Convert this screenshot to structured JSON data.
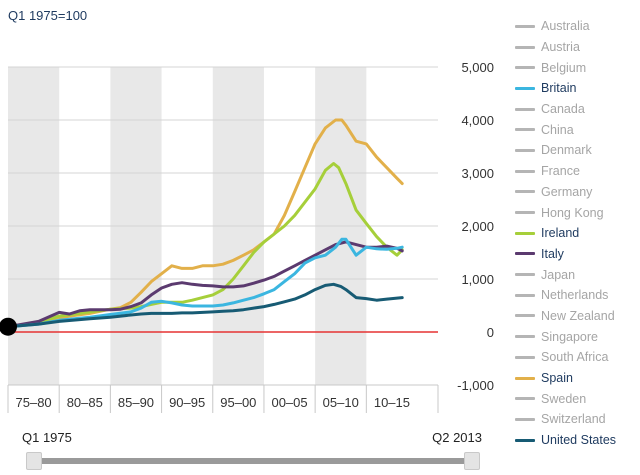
{
  "header": {
    "ylabel": "Q1 1975=100"
  },
  "legend": {
    "items": [
      {
        "name": "Australia",
        "color": "#b5b5b5",
        "active": false
      },
      {
        "name": "Austria",
        "color": "#b5b5b5",
        "active": false
      },
      {
        "name": "Belgium",
        "color": "#b5b5b5",
        "active": false
      },
      {
        "name": "Britain",
        "color": "#3bb6e0",
        "active": true
      },
      {
        "name": "Canada",
        "color": "#b5b5b5",
        "active": false
      },
      {
        "name": "China",
        "color": "#b5b5b5",
        "active": false
      },
      {
        "name": "Denmark",
        "color": "#b5b5b5",
        "active": false
      },
      {
        "name": "France",
        "color": "#b5b5b5",
        "active": false
      },
      {
        "name": "Germany",
        "color": "#b5b5b5",
        "active": false
      },
      {
        "name": "Hong Kong",
        "color": "#b5b5b5",
        "active": false
      },
      {
        "name": "Ireland",
        "color": "#a6cf3a",
        "active": true
      },
      {
        "name": "Italy",
        "color": "#5b3a6f",
        "active": true
      },
      {
        "name": "Japan",
        "color": "#b5b5b5",
        "active": false
      },
      {
        "name": "Netherlands",
        "color": "#b5b5b5",
        "active": false
      },
      {
        "name": "New Zealand",
        "color": "#b5b5b5",
        "active": false
      },
      {
        "name": "Singapore",
        "color": "#b5b5b5",
        "active": false
      },
      {
        "name": "South Africa",
        "color": "#b5b5b5",
        "active": false
      },
      {
        "name": "Spain",
        "color": "#e2b04a",
        "active": true
      },
      {
        "name": "Sweden",
        "color": "#b5b5b5",
        "active": false
      },
      {
        "name": "Switzerland",
        "color": "#b5b5b5",
        "active": false
      },
      {
        "name": "United States",
        "color": "#175b74",
        "active": true
      }
    ]
  },
  "slider": {
    "start_label": "Q1 1975",
    "end_label": "Q2 2013"
  },
  "chart_data": {
    "type": "line",
    "ylabel": "Q1 1975=100",
    "ylim": [
      -1000,
      5000
    ],
    "xlim": [
      1975,
      2017
    ],
    "yticks": [
      5000,
      4000,
      3000,
      2000,
      1000,
      0,
      -1000
    ],
    "ytick_labels": [
      "5,000",
      "4,000",
      "3,000",
      "2,000",
      "1,000",
      "0",
      "-1,000"
    ],
    "categories": [
      "75–80",
      "80–85",
      "85–90",
      "90–95",
      "95–00",
      "00–05",
      "05–10",
      "10–15"
    ],
    "baseline": 100,
    "series": [
      {
        "name": "Spain",
        "color": "#e2b04a",
        "x": [
          1975,
          1977,
          1979,
          1981,
          1983,
          1985,
          1986,
          1987,
          1988,
          1989,
          1990,
          1991,
          1992,
          1993,
          1994,
          1995,
          1996,
          1997,
          1998,
          1999,
          2000,
          2001,
          2002,
          2003,
          2004,
          2005,
          2006,
          2007,
          2007.6,
          2008,
          2009,
          2010,
          2011,
          2012,
          2013,
          2013.5
        ],
        "y": [
          100,
          150,
          220,
          300,
          350,
          430,
          460,
          560,
          750,
          950,
          1100,
          1250,
          1200,
          1200,
          1250,
          1250,
          1280,
          1350,
          1450,
          1550,
          1700,
          1850,
          2200,
          2650,
          3100,
          3550,
          3850,
          4000,
          4000,
          3900,
          3600,
          3550,
          3300,
          3100,
          2900,
          2800
        ]
      },
      {
        "name": "Ireland",
        "color": "#a6cf3a",
        "x": [
          1975,
          1978,
          1980,
          1983,
          1985,
          1987,
          1988,
          1989,
          1990,
          1991,
          1992,
          1993,
          1994,
          1995,
          1996,
          1997,
          1998,
          1999,
          2000,
          2001,
          2002,
          2003,
          2004,
          2005,
          2006,
          2006.8,
          2007.3,
          2008,
          2009,
          2010,
          2011,
          2012,
          2013,
          2013.5
        ],
        "y": [
          100,
          180,
          300,
          380,
          430,
          450,
          480,
          520,
          560,
          560,
          560,
          600,
          650,
          700,
          800,
          1000,
          1250,
          1500,
          1700,
          1850,
          2000,
          2200,
          2450,
          2700,
          3050,
          3180,
          3100,
          2800,
          2300,
          2050,
          1800,
          1600,
          1450,
          1550
        ]
      },
      {
        "name": "Italy",
        "color": "#5b3a6f",
        "x": [
          1975,
          1978,
          1980,
          1981,
          1982,
          1983,
          1985,
          1986,
          1987,
          1988,
          1989,
          1990,
          1991,
          1992,
          1993,
          1994,
          1995,
          1996,
          1997,
          1998,
          1999,
          2000,
          2001,
          2002,
          2003,
          2004,
          2005,
          2006,
          2007,
          2008,
          2009,
          2010,
          2011,
          2012,
          2013,
          2013.5
        ],
        "y": [
          100,
          200,
          370,
          340,
          400,
          420,
          420,
          430,
          480,
          550,
          700,
          830,
          900,
          930,
          900,
          880,
          870,
          850,
          850,
          870,
          920,
          980,
          1050,
          1150,
          1250,
          1350,
          1450,
          1550,
          1650,
          1700,
          1650,
          1600,
          1600,
          1620,
          1580,
          1530
        ]
      },
      {
        "name": "Britain",
        "color": "#3bb6e0",
        "x": [
          1975,
          1978,
          1980,
          1983,
          1985,
          1987,
          1988,
          1989,
          1990,
          1991,
          1992,
          1993,
          1994,
          1995,
          1996,
          1997,
          1998,
          1999,
          2000,
          2001,
          2002,
          2003,
          2004,
          2005,
          2006,
          2007,
          2007.6,
          2008,
          2009,
          2010,
          2011,
          2012,
          2013,
          2013.5
        ],
        "y": [
          100,
          150,
          220,
          280,
          330,
          380,
          450,
          560,
          580,
          550,
          510,
          490,
          490,
          490,
          510,
          550,
          600,
          650,
          720,
          800,
          950,
          1100,
          1300,
          1400,
          1450,
          1600,
          1750,
          1750,
          1450,
          1600,
          1570,
          1560,
          1580,
          1600
        ]
      },
      {
        "name": "United States",
        "color": "#175b74",
        "x": [
          1975,
          1978,
          1980,
          1983,
          1985,
          1987,
          1988,
          1989,
          1990,
          1991,
          1992,
          1993,
          1994,
          1995,
          1996,
          1997,
          1998,
          1999,
          2000,
          2001,
          2002,
          2003,
          2004,
          2005,
          2006,
          2006.8,
          2007.5,
          2008,
          2009,
          2010,
          2011,
          2012,
          2013,
          2013.5
        ],
        "y": [
          100,
          150,
          200,
          250,
          280,
          320,
          340,
          350,
          350,
          350,
          360,
          360,
          370,
          380,
          390,
          400,
          420,
          450,
          480,
          520,
          570,
          620,
          700,
          800,
          880,
          900,
          860,
          800,
          650,
          630,
          600,
          620,
          640,
          650
        ]
      }
    ]
  }
}
